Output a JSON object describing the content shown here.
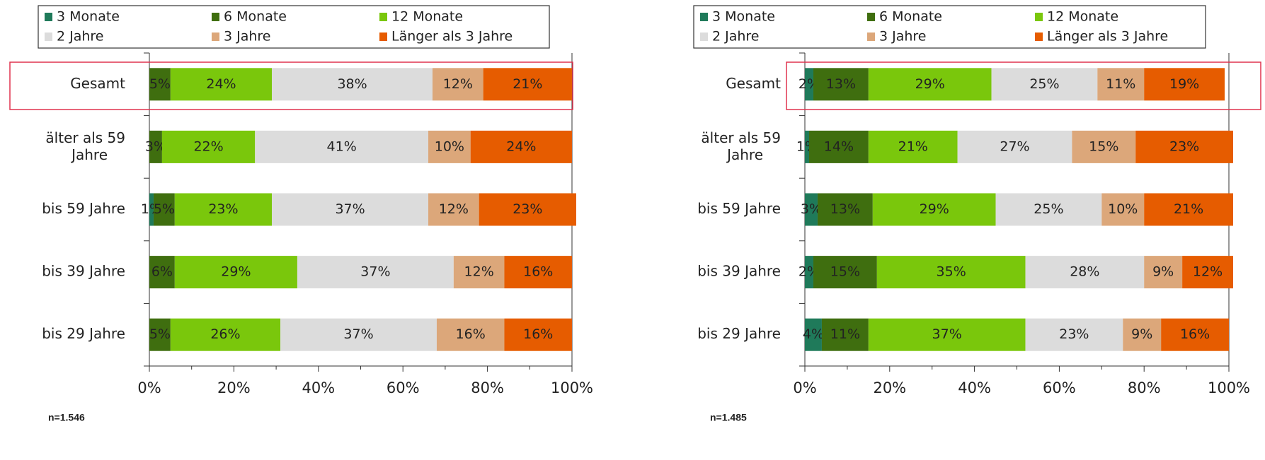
{
  "chart_data": [
    {
      "type": "stacked_bar_horizontal",
      "note": "n=1.546",
      "categories": [
        "Gesamt",
        "älter als 59 Jahre",
        "bis 59 Jahre",
        "bis 39 Jahre",
        "bis 29 Jahre"
      ],
      "xlim": [
        0,
        100
      ],
      "xticks": [
        {
          "value": 0,
          "label": "0%"
        },
        {
          "value": 20,
          "label": "20%"
        },
        {
          "value": 40,
          "label": "40%"
        },
        {
          "value": 60,
          "label": "60%"
        },
        {
          "value": 80,
          "label": "80%"
        },
        {
          "value": 100,
          "label": "100%"
        }
      ],
      "series": [
        {
          "name": "3 Monate",
          "color": "#1f7a5a",
          "values": [
            0,
            0,
            1,
            0,
            0
          ],
          "value_labels": [
            null,
            null,
            "1%",
            null,
            null
          ]
        },
        {
          "name": "6 Monate",
          "color": "#3f6e0f",
          "values": [
            5,
            3,
            5,
            6,
            5
          ],
          "value_labels": [
            "5%",
            "3%",
            "5%",
            "6%",
            "5%"
          ]
        },
        {
          "name": "12 Monate",
          "color": "#7ac70c",
          "values": [
            24,
            22,
            23,
            29,
            26
          ],
          "value_labels": [
            "24%",
            "22%",
            "23%",
            "29%",
            "26%"
          ]
        },
        {
          "name": "2 Jahre",
          "color": "#dcdcdc",
          "values": [
            38,
            41,
            37,
            37,
            37
          ],
          "value_labels": [
            "38%",
            "41%",
            "37%",
            "37%",
            "37%"
          ]
        },
        {
          "name": "3 Jahre",
          "color": "#dca77a",
          "values": [
            12,
            10,
            12,
            12,
            16
          ],
          "value_labels": [
            "12%",
            "10%",
            "12%",
            "12%",
            "16%"
          ]
        },
        {
          "name": "Länger als 3 Jahre",
          "color": "#e65c00",
          "values": [
            21,
            24,
            23,
            16,
            16
          ],
          "value_labels": [
            "21%",
            "24%",
            "23%",
            "16%",
            "16%"
          ]
        }
      ]
    },
    {
      "type": "stacked_bar_horizontal",
      "note": "n=1.485",
      "categories": [
        "Gesamt",
        "älter als 59 Jahre",
        "bis 59 Jahre",
        "bis 39 Jahre",
        "bis 29 Jahre"
      ],
      "xlim": [
        0,
        100
      ],
      "xticks": [
        {
          "value": 0,
          "label": "0%"
        },
        {
          "value": 20,
          "label": "20%"
        },
        {
          "value": 40,
          "label": "40%"
        },
        {
          "value": 60,
          "label": "60%"
        },
        {
          "value": 80,
          "label": "80%"
        },
        {
          "value": 100,
          "label": "100%"
        }
      ],
      "series": [
        {
          "name": "3 Monate",
          "color": "#1f7a5a",
          "values": [
            2,
            1,
            3,
            2,
            4
          ],
          "value_labels": [
            "2%",
            "1%",
            "3%",
            "2%",
            "4%"
          ]
        },
        {
          "name": "6 Monate",
          "color": "#3f6e0f",
          "values": [
            13,
            14,
            13,
            15,
            11
          ],
          "value_labels": [
            "13%",
            "14%",
            "13%",
            "15%",
            "11%"
          ]
        },
        {
          "name": "12 Monate",
          "color": "#7ac70c",
          "values": [
            29,
            21,
            29,
            35,
            37
          ],
          "value_labels": [
            "29%",
            "21%",
            "29%",
            "35%",
            "37%"
          ]
        },
        {
          "name": "2 Jahre",
          "color": "#dcdcdc",
          "values": [
            25,
            27,
            25,
            28,
            23
          ],
          "value_labels": [
            "25%",
            "27%",
            "25%",
            "28%",
            "23%"
          ]
        },
        {
          "name": "3 Jahre",
          "color": "#dca77a",
          "values": [
            11,
            15,
            10,
            9,
            9
          ],
          "value_labels": [
            "11%",
            "15%",
            "10%",
            "9%",
            "9%"
          ]
        },
        {
          "name": "Länger als 3 Jahre",
          "color": "#e65c00",
          "values": [
            19,
            23,
            21,
            12,
            16
          ],
          "value_labels": [
            "19%",
            "23%",
            "21%",
            "12%",
            "16%"
          ]
        }
      ]
    }
  ]
}
